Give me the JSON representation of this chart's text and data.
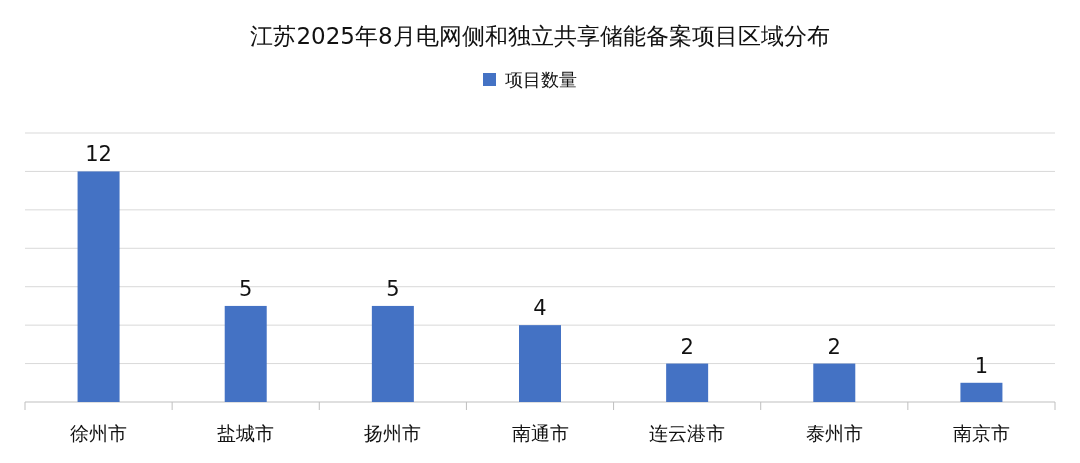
{
  "chart_data": {
    "type": "bar",
    "title": "江苏2025年8月电网侧和独立共享储能备案项目区域分布",
    "categories": [
      "徐州市",
      "盐城市",
      "扬州市",
      "南通市",
      "连云港市",
      "泰州市",
      "南京市"
    ],
    "series": [
      {
        "name": "项目数量",
        "color": "#4472c4",
        "values": [
          12,
          5,
          5,
          4,
          2,
          2,
          1
        ]
      }
    ],
    "ylim": [
      0,
      14
    ],
    "yticks": [
      {
        "value": 0,
        "label": null
      },
      {
        "value": 2,
        "label": null
      },
      {
        "value": 4,
        "label": null
      },
      {
        "value": 6,
        "label": null
      },
      {
        "value": 8,
        "label": null
      },
      {
        "value": 10,
        "label": null
      },
      {
        "value": 12,
        "label": null
      },
      {
        "value": 14,
        "label": null
      }
    ],
    "tick_labels": "x",
    "grid": "y",
    "legend": "top",
    "data_labels": true
  }
}
